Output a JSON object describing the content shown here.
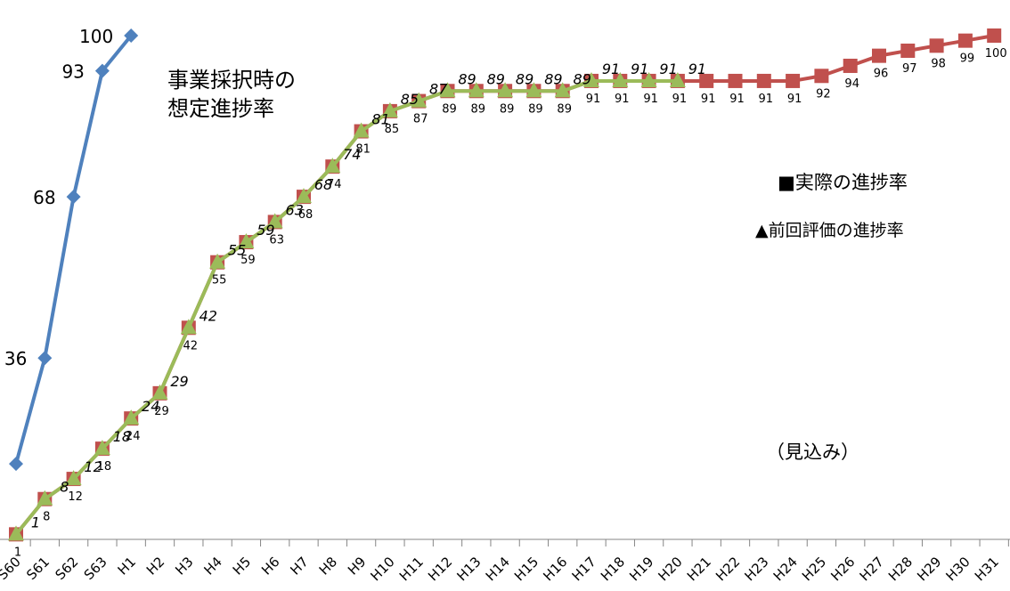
{
  "chart_data": {
    "type": "line",
    "categories": [
      "S60",
      "S61",
      "S62",
      "S63",
      "H1",
      "H2",
      "H3",
      "H4",
      "H5",
      "H6",
      "H7",
      "H8",
      "H9",
      "H10",
      "H11",
      "H12",
      "H13",
      "H14",
      "H15",
      "H16",
      "H17",
      "H18",
      "H19",
      "H20",
      "H21",
      "H22",
      "H23",
      "H24",
      "H25",
      "H26",
      "H27",
      "H28",
      "H29",
      "H30",
      "H31"
    ],
    "ylim": [
      0,
      100
    ],
    "series": [
      {
        "name": "■実際の進捗率",
        "color": "#c0504d",
        "marker": "square",
        "values": [
          1,
          8,
          12,
          18,
          24,
          29,
          42,
          55,
          59,
          63,
          68,
          74,
          81,
          85,
          87,
          89,
          89,
          89,
          89,
          89,
          91,
          91,
          91,
          91,
          91,
          91,
          91,
          91,
          92,
          94,
          96,
          97,
          98,
          99,
          100
        ]
      },
      {
        "name": "▲前回評価の進捗率",
        "color": "#9bbb59",
        "marker": "triangle",
        "values": [
          1,
          8,
          12,
          18,
          24,
          29,
          42,
          55,
          59,
          63,
          68,
          74,
          81,
          85,
          87,
          89,
          89,
          89,
          89,
          89,
          91,
          91,
          91,
          91,
          null,
          null,
          null,
          null,
          null,
          null,
          null,
          null,
          null,
          null,
          null
        ]
      },
      {
        "name": "事業採択時の\n想定進捗率",
        "color": "#4f81bd",
        "marker": "diamond",
        "values": [
          15,
          36,
          68,
          93,
          100,
          null,
          null,
          null,
          null,
          null,
          null,
          null,
          null,
          null,
          null,
          null,
          null,
          null,
          null,
          null,
          null,
          null,
          null,
          null,
          null,
          null,
          null,
          null,
          null,
          null,
          null,
          null,
          null,
          null,
          null
        ]
      }
    ],
    "annotation": "（見込み）"
  }
}
